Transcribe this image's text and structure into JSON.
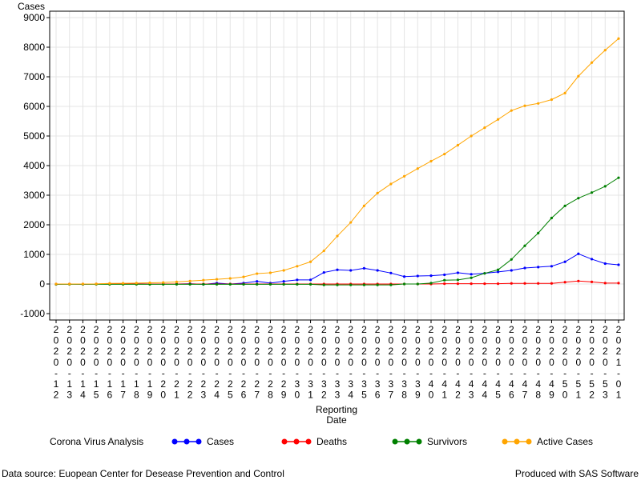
{
  "chart_data": {
    "type": "line",
    "ylabel": "Cases",
    "xlabel": [
      "Reporting",
      "Date"
    ],
    "legend_title": "Corona Virus Analysis",
    "footnote_left": "Data source: Euopean Center for Desease Prevention and Control",
    "footnote_right": "Produced with SAS Software",
    "categories": [
      "2020-12",
      "2020-13",
      "2020-14",
      "2020-15",
      "2020-16",
      "2020-17",
      "2020-18",
      "2020-19",
      "2020-20",
      "2020-21",
      "2020-22",
      "2020-23",
      "2020-24",
      "2020-25",
      "2020-26",
      "2020-27",
      "2020-28",
      "2020-29",
      "2020-30",
      "2020-31",
      "2020-32",
      "2020-33",
      "2020-34",
      "2020-35",
      "2020-36",
      "2020-37",
      "2020-38",
      "2020-39",
      "2020-40",
      "2020-41",
      "2020-42",
      "2020-43",
      "2020-44",
      "2020-45",
      "2020-46",
      "2020-47",
      "2020-48",
      "2020-49",
      "2020-50",
      "2020-51",
      "2020-52",
      "2020-53",
      "2021-01"
    ],
    "series": [
      {
        "name": "Cases",
        "color": "#0000ff",
        "values": [
          -10,
          0,
          -10,
          0,
          10,
          10,
          10,
          0,
          0,
          0,
          10,
          -10,
          30,
          0,
          30,
          90,
          30,
          90,
          140,
          140,
          390,
          480,
          460,
          530,
          460,
          370,
          250,
          270,
          280,
          310,
          380,
          330,
          360,
          410,
          460,
          540,
          570,
          600,
          750,
          1020,
          840,
          690,
          650
        ]
      },
      {
        "name": "Deaths",
        "color": "#ff0000",
        "values": [
          0,
          0,
          0,
          0,
          0,
          0,
          0,
          0,
          0,
          0,
          0,
          0,
          0,
          0,
          0,
          0,
          0,
          0,
          0,
          0,
          0,
          0,
          0,
          0,
          0,
          0,
          0,
          0,
          0,
          10,
          10,
          10,
          10,
          10,
          20,
          20,
          20,
          20,
          60,
          100,
          70,
          30,
          30
        ]
      },
      {
        "name": "Survivors",
        "color": "#008000",
        "values": [
          -10,
          -10,
          -10,
          -10,
          -10,
          -10,
          -10,
          -10,
          -10,
          -10,
          -10,
          -10,
          -10,
          -10,
          -10,
          -10,
          -10,
          -10,
          -10,
          -10,
          -30,
          -30,
          -30,
          -30,
          -30,
          -30,
          0,
          0,
          30,
          130,
          140,
          210,
          360,
          480,
          830,
          1290,
          1720,
          2230,
          2640,
          2900,
          3090,
          3300,
          3590
        ]
      },
      {
        "name": "Active Cases",
        "color": "#ffa500",
        "values": [
          0,
          0,
          0,
          5,
          20,
          25,
          30,
          40,
          50,
          70,
          100,
          130,
          160,
          190,
          240,
          350,
          380,
          460,
          600,
          750,
          1120,
          1620,
          2080,
          2640,
          3070,
          3380,
          3640,
          3900,
          4150,
          4390,
          4690,
          5000,
          5280,
          5560,
          5860,
          6020,
          6100,
          6230,
          6450,
          7020,
          7480,
          7900,
          8290
        ]
      }
    ],
    "ylim": [
      -1000,
      9000
    ],
    "yticks": [
      -1000,
      0,
      1000,
      2000,
      3000,
      4000,
      5000,
      6000,
      7000,
      8000,
      9000
    ],
    "grid": true
  }
}
